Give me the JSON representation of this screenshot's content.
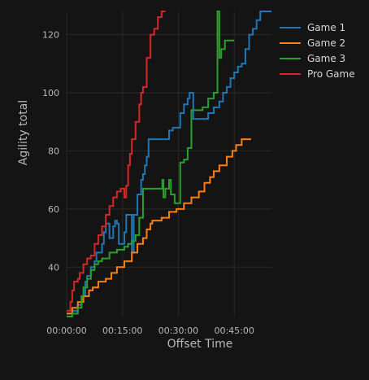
{
  "chart_data": {
    "type": "line",
    "line_shape": "step",
    "xlabel": "Offset Time",
    "ylabel": "Agility total",
    "x_unit": "minutes",
    "xlim": [
      0,
      55
    ],
    "ylim": [
      23,
      128
    ],
    "x_ticks": [
      {
        "value": 0,
        "label": "00:00:00"
      },
      {
        "value": 15,
        "label": "00:15:00"
      },
      {
        "value": 30,
        "label": "00:30:00"
      },
      {
        "value": 45,
        "label": "00:45:00"
      }
    ],
    "y_ticks": [
      40,
      60,
      80,
      100,
      120
    ],
    "grid": true,
    "legend_position": "top-right",
    "series": [
      {
        "name": "Game 1",
        "color": "#1f77b4",
        "x": [
          0,
          1.5,
          3,
          4,
          5,
          5.5,
          6.5,
          7.5,
          8,
          9.5,
          10,
          10.5,
          11.5,
          12.5,
          13,
          13.5,
          14,
          15.5,
          16,
          17.5,
          18,
          19,
          20,
          20.5,
          21,
          21.5,
          22,
          23,
          27,
          27.5,
          28.5,
          30,
          30.5,
          31.5,
          32.5,
          33,
          34,
          36.5,
          38,
          39.5,
          40.5,
          41,
          42,
          43,
          44,
          45,
          46,
          47,
          48,
          49,
          50,
          51,
          52,
          53.5,
          55
        ],
        "y": [
          24,
          25,
          27,
          30,
          35,
          37,
          40,
          42,
          45,
          48,
          52,
          55,
          50,
          54,
          56,
          55,
          48,
          52,
          58,
          45,
          58,
          65,
          70,
          72,
          75,
          78,
          84,
          84,
          84,
          87,
          88,
          88,
          93,
          96,
          98,
          100,
          91,
          91,
          93,
          95,
          95,
          97,
          100,
          102,
          105,
          107,
          109,
          110,
          115,
          120,
          122,
          125,
          128,
          128,
          128
        ]
      },
      {
        "name": "Game 2",
        "color": "#ff7f0e",
        "x": [
          0,
          1.5,
          3,
          4.5,
          6,
          7,
          8.5,
          10.5,
          12,
          13.5,
          15.5,
          17.5,
          19,
          20.5,
          21.5,
          22.5,
          23,
          25.5,
          27.5,
          29.5,
          31.5,
          33.5,
          35.5,
          37,
          38.5,
          39.5,
          41,
          43,
          44.5,
          45.5,
          47,
          48.5,
          49.5
        ],
        "y": [
          24,
          26,
          28,
          30,
          32,
          33,
          35,
          36,
          38,
          40,
          42,
          45,
          48,
          50,
          53,
          55,
          56,
          57,
          59,
          60,
          62,
          64,
          66,
          69,
          71,
          73,
          75,
          78,
          80,
          82,
          84,
          84,
          84
        ]
      },
      {
        "name": "Game 3",
        "color": "#2ca02c",
        "x": [
          0,
          1.5,
          3,
          4,
          4.5,
          5.5,
          6.5,
          7.5,
          8.5,
          9.5,
          11.5,
          13.5,
          15.5,
          16.5,
          17.5,
          18.5,
          19.5,
          20.5,
          25.5,
          25.7,
          26,
          26.5,
          27.5,
          28,
          29,
          30.5,
          31.5,
          32.5,
          33.5,
          34.5,
          36.5,
          38,
          39.5,
          40.5,
          41,
          41.5,
          42.5,
          43.5,
          44.5,
          45
        ],
        "y": [
          23,
          24,
          26,
          30,
          33,
          36,
          39,
          41,
          42,
          43,
          45,
          46,
          47,
          48,
          49,
          51,
          57,
          67,
          67,
          70,
          64,
          67,
          70,
          65,
          62,
          76,
          77,
          81,
          94,
          94,
          95,
          98,
          100,
          128,
          112,
          115,
          118,
          118,
          118,
          118
        ]
      },
      {
        "name": "Pro Game",
        "color": "#d62728",
        "x": [
          0,
          1,
          1.5,
          2,
          3,
          3.5,
          4.5,
          5.5,
          6.5,
          7.5,
          8.5,
          9.5,
          10.5,
          11.5,
          12.5,
          13.5,
          14.5,
          15.5,
          16,
          16.5,
          17,
          17.5,
          18.5,
          19.5,
          20,
          20.5,
          21.5,
          22.5,
          23.5,
          24.5,
          25.5,
          26.5
        ],
        "y": [
          25,
          28,
          32,
          35,
          36,
          38,
          41,
          43,
          44,
          48,
          51,
          54,
          58,
          61,
          64,
          66,
          67,
          64,
          68,
          75,
          79,
          84,
          90,
          96,
          100,
          102,
          112,
          120,
          122,
          126,
          128,
          128
        ]
      }
    ]
  }
}
